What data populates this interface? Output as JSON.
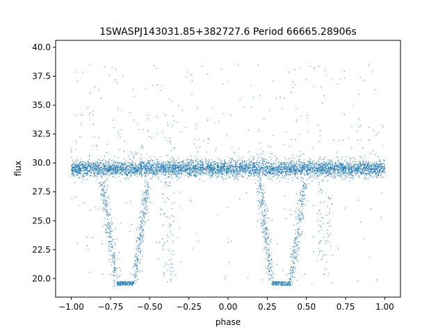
{
  "chart_data": {
    "type": "scatter",
    "title": "1SWASPJ143031.85+382727.6 Period 66665.28906s",
    "xlabel": "phase",
    "ylabel": "flux",
    "xlim": [
      -1.1,
      1.1
    ],
    "ylim": [
      18.4,
      40.6
    ],
    "x_ticks": [
      -1.0,
      -0.75,
      -0.5,
      -0.25,
      0.0,
      0.25,
      0.5,
      0.75,
      1.0
    ],
    "x_tick_labels": [
      "−1.00",
      "−0.75",
      "−0.50",
      "−0.25",
      "0.00",
      "0.25",
      "0.50",
      "0.75",
      "1.00"
    ],
    "y_ticks": [
      20.0,
      22.5,
      25.0,
      27.5,
      30.0,
      32.5,
      35.0,
      37.5,
      40.0
    ],
    "y_tick_labels": [
      "20.0",
      "22.5",
      "25.0",
      "27.5",
      "30.0",
      "32.5",
      "35.0",
      "37.5",
      "40.0"
    ],
    "grid": false,
    "marker_color": "#1f77b4",
    "series": [
      {
        "baseline_flux": 29.5,
        "baseline_scatter": 0.35,
        "phase_range": [
          -1.0,
          1.0
        ],
        "eclipse_floor": 19.4,
        "eclipses": [
          {
            "phase_center": -0.65,
            "ingress_phase": -0.8,
            "egress_phase": -0.51,
            "flat_bottom": [
              -0.71,
              -0.6
            ]
          },
          {
            "phase_center": 0.35,
            "ingress_phase": 0.2,
            "egress_phase": 0.49,
            "flat_bottom": [
              0.28,
              0.4
            ]
          }
        ],
        "secondary_dips": [
          {
            "phase_center": -0.38,
            "min_flux": 19.5
          },
          {
            "phase_center": 0.62,
            "min_flux": 19.5
          }
        ],
        "outlier_range": [
          19.5,
          38.5
        ]
      }
    ]
  }
}
